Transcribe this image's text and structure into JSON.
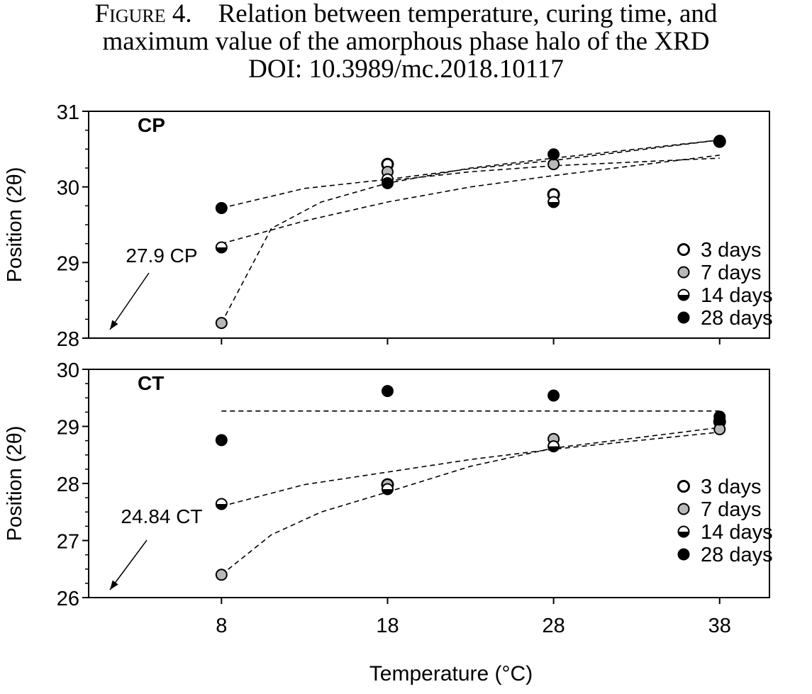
{
  "figure": {
    "label": "Figure 4.",
    "title": "Relation between temperature, curing time, and",
    "title_line2": "maximum value of the amorphous phase halo of the XRD",
    "doi": "DOI: 10.3989/mc.2018.10117"
  },
  "xlabel": "Temperature (°C)",
  "legend_items": [
    {
      "label": "3 days",
      "marker": "open"
    },
    {
      "label": "7 days",
      "marker": "gray"
    },
    {
      "label": "14 days",
      "marker": "half"
    },
    {
      "label": "28 days",
      "marker": "filled"
    }
  ],
  "chart_data": [
    {
      "type": "scatter",
      "panel_label": "CP",
      "ylabel": "Position (2θ)",
      "xlim": [
        0,
        41
      ],
      "ylim": [
        28,
        31
      ],
      "x_ticks": [
        8,
        18,
        28,
        38
      ],
      "y_ticks": [
        28,
        29,
        30,
        31
      ],
      "annotation": "27.9 CP",
      "legend_position": "right",
      "series": [
        {
          "name": "3 days",
          "marker": "open",
          "points": [
            [
              18,
              30.3
            ],
            [
              28,
              29.9
            ],
            [
              38,
              30.6
            ]
          ]
        },
        {
          "name": "7 days",
          "marker": "gray",
          "points": [
            [
              8,
              28.2
            ],
            [
              18,
              30.2
            ],
            [
              28,
              30.3
            ],
            [
              38,
              30.6
            ]
          ]
        },
        {
          "name": "14 days",
          "marker": "half",
          "points": [
            [
              8,
              29.2
            ],
            [
              18,
              30.1
            ],
            [
              28,
              29.8
            ],
            [
              38,
              30.6
            ]
          ]
        },
        {
          "name": "28 days",
          "marker": "filled",
          "points": [
            [
              8,
              29.72
            ],
            [
              18,
              30.05
            ],
            [
              28,
              30.43
            ],
            [
              38,
              30.61
            ]
          ]
        }
      ],
      "trend_lines": [
        {
          "series": "7 days",
          "fit": "log",
          "points": [
            [
              8,
              28.2
            ],
            [
              11,
              29.45
            ],
            [
              14,
              29.8
            ],
            [
              18,
              30.05
            ],
            [
              23,
              30.25
            ],
            [
              28,
              30.38
            ],
            [
              38,
              30.62
            ]
          ]
        },
        {
          "series": "14 days",
          "fit": "log",
          "points": [
            [
              8,
              29.25
            ],
            [
              13,
              29.55
            ],
            [
              18,
              29.8
            ],
            [
              23,
              30.0
            ],
            [
              28,
              30.15
            ],
            [
              38,
              30.42
            ]
          ]
        },
        {
          "series": "28 days",
          "fit": "log",
          "points": [
            [
              8,
              29.72
            ],
            [
              13,
              29.98
            ],
            [
              18,
              30.1
            ],
            [
              23,
              30.24
            ],
            [
              28,
              30.35
            ],
            [
              38,
              30.62
            ]
          ]
        },
        {
          "series": "3 days",
          "fit": "log",
          "points": [
            [
              18,
              30.08
            ],
            [
              23,
              30.2
            ],
            [
              28,
              30.28
            ],
            [
              38,
              30.38
            ]
          ]
        }
      ]
    },
    {
      "type": "scatter",
      "panel_label": "CT",
      "ylabel": "Position (2θ)",
      "xlabel": "Temperature (°C)",
      "xlim": [
        0,
        41
      ],
      "ylim": [
        26,
        30
      ],
      "x_ticks": [
        8,
        18,
        28,
        38
      ],
      "y_ticks": [
        26,
        27,
        28,
        29,
        30
      ],
      "annotation": "24.84 CT",
      "legend_position": "right",
      "series": [
        {
          "name": "3 days",
          "marker": "open",
          "points": [
            [
              18,
              27.98
            ],
            [
              38,
              29.08
            ]
          ]
        },
        {
          "name": "7 days",
          "marker": "gray",
          "points": [
            [
              8,
              26.4
            ],
            [
              18,
              27.98
            ],
            [
              28,
              28.78
            ],
            [
              38,
              28.95
            ]
          ]
        },
        {
          "name": "14 days",
          "marker": "half",
          "points": [
            [
              8,
              27.64
            ],
            [
              18,
              27.9
            ],
            [
              28,
              28.65
            ],
            [
              38,
              29.12
            ]
          ]
        },
        {
          "name": "28 days",
          "marker": "filled",
          "points": [
            [
              8,
              28.76
            ],
            [
              18,
              29.62
            ],
            [
              28,
              29.54
            ],
            [
              38,
              29.17
            ]
          ]
        }
      ],
      "trend_lines": [
        {
          "series": "28 days",
          "fit": "constant",
          "points": [
            [
              8,
              29.27
            ],
            [
              38,
              29.27
            ]
          ]
        },
        {
          "series": "7 days",
          "fit": "log",
          "points": [
            [
              8,
              26.4
            ],
            [
              11,
              27.1
            ],
            [
              14,
              27.5
            ],
            [
              18,
              27.85
            ],
            [
              23,
              28.3
            ],
            [
              28,
              28.62
            ],
            [
              38,
              28.98
            ]
          ]
        },
        {
          "series": "14 days",
          "fit": "log",
          "points": [
            [
              8,
              27.6
            ],
            [
              13,
              27.98
            ],
            [
              18,
              28.2
            ],
            [
              23,
              28.42
            ],
            [
              28,
              28.6
            ],
            [
              38,
              28.9
            ]
          ]
        }
      ]
    }
  ]
}
